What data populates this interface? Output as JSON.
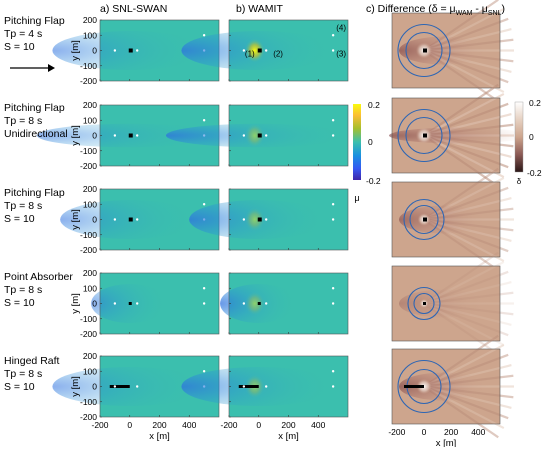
{
  "column_titles": {
    "a": "a) SNL-SWAN",
    "b": "b) WAMIT",
    "c": "c) Difference (δ = μ",
    "c_sub1": "WAM",
    "c_mid": " - μ",
    "c_sub2": "SNL",
    "c_end": ")"
  },
  "rows": [
    {
      "lines": [
        "Pitching Flap",
        "Tp = 4 s",
        "S = 10"
      ]
    },
    {
      "lines": [
        "Pitching Flap",
        "Tp = 8 s",
        "Unidirectional"
      ]
    },
    {
      "lines": [
        "Pitching Flap",
        "Tp = 8 s",
        "S = 10"
      ]
    },
    {
      "lines": [
        "Point Absorber",
        "Tp = 8 s",
        "S = 10"
      ]
    },
    {
      "lines": [
        "Hinged Raft",
        "Tp = 8 s",
        "S = 10"
      ]
    }
  ],
  "axis": {
    "ylabel": "y [m]",
    "xlabel": "x [m]",
    "y_ticks": [
      "200",
      "100",
      "0",
      "-100",
      "-200"
    ],
    "x_ticks_ab": [
      "-200",
      "0",
      "200",
      "400"
    ],
    "x_ticks_c": [
      "-200",
      "0",
      "200",
      "400"
    ]
  },
  "point_labels": {
    "p1": "(1)",
    "p2": "(2)",
    "p3": "(3)",
    "p4": "(4)"
  },
  "colorbar_mu": {
    "max": "0.2",
    "mid": "0",
    "min": "-0.2",
    "label": "μ"
  },
  "colorbar_delta": {
    "max": "0.2",
    "mid": "0",
    "min": "-0.2",
    "label": "δ"
  },
  "colors": {
    "field_bg": "#3bbfae",
    "diff_bg": "#cda58d",
    "circle": "#2e66b4",
    "device": "#000000"
  },
  "chart_data": {
    "type": "heatmap",
    "panels_columns": [
      "a) SNL-SWAN",
      "b) WAMIT",
      "c) Difference (δ = μWAM - μSNL)"
    ],
    "x_range": [
      -200,
      600
    ],
    "y_range": [
      -200,
      200
    ],
    "mu_range": [
      -0.2,
      0.2
    ],
    "delta_range": [
      -0.2,
      0.2
    ],
    "points": [
      {
        "label": "(1)",
        "x": -100,
        "y": 0
      },
      {
        "label": "(2)",
        "x": 50,
        "y": 0
      },
      {
        "label": "(3)",
        "x": 500,
        "y": 0
      },
      {
        "label": "(4)",
        "x": 500,
        "y": 100
      }
    ]
  }
}
